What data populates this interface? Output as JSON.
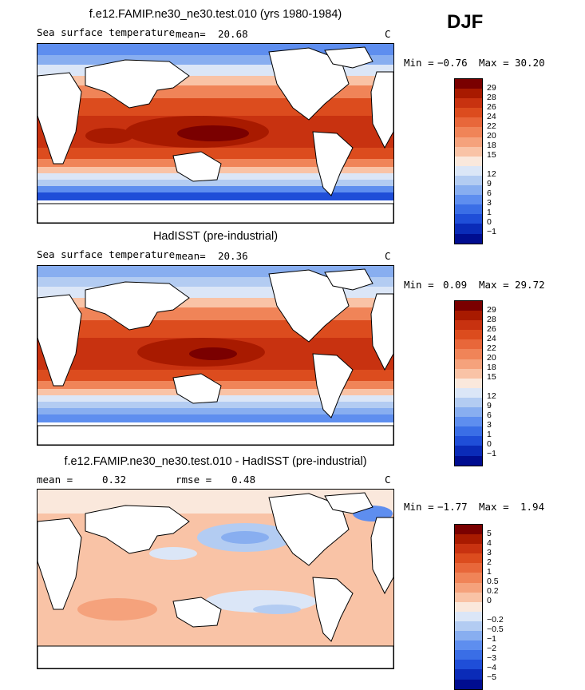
{
  "season": "DJF",
  "panels": [
    {
      "id": "model",
      "title": "f.e12.FAMIP.ne30_ne30.test.010 (yrs 1980-1984)",
      "left_label": "Sea surface temperature",
      "mean_label": "mean=",
      "mean_value": "20.68",
      "unit": "C",
      "min_label": "Min =",
      "min_value": "−0.76",
      "max_label": "Max =",
      "max_value": "30.20",
      "colorbar_labels": [
        "29",
        "28",
        "26",
        "24",
        "22",
        "20",
        "18",
        "15",
        "12",
        "9",
        "6",
        "3",
        "1",
        "0",
        "−1"
      ]
    },
    {
      "id": "obs",
      "title": "HadISST (pre-industrial)",
      "left_label": "Sea surface temperature",
      "mean_label": "mean=",
      "mean_value": "20.36",
      "unit": "C",
      "min_label": "Min =",
      "min_value": "0.09",
      "max_label": "Max =",
      "max_value": "29.72",
      "colorbar_labels": [
        "29",
        "28",
        "26",
        "24",
        "22",
        "20",
        "18",
        "15",
        "12",
        "9",
        "6",
        "3",
        "1",
        "0",
        "−1"
      ]
    },
    {
      "id": "diff",
      "title": "f.e12.FAMIP.ne30_ne30.test.010 - HadISST (pre-industrial)",
      "mean_label": "mean =",
      "mean_value": "0.32",
      "rmse_label": "rmse =",
      "rmse_value": "0.48",
      "unit": "C",
      "min_label": "Min =",
      "min_value": "−1.77",
      "max_label": "Max =",
      "max_value": "1.94",
      "colorbar_labels": [
        "5",
        "4",
        "3",
        "2",
        "1",
        "0.5",
        "0.2",
        "0",
        "−0.2",
        "−0.5",
        "−1",
        "−2",
        "−3",
        "−4",
        "−5"
      ]
    }
  ],
  "colors": {
    "abs_scale": [
      "#7a0000",
      "#a81a00",
      "#c83210",
      "#dc4c1e",
      "#e8673a",
      "#f08458",
      "#f5a27c",
      "#f9c3a6",
      "#fae8dc",
      "#dbe6f7",
      "#b3ccf2",
      "#88aef0",
      "#5e8eef",
      "#3a6ee6",
      "#1f4ed8",
      "#0a2bb8",
      "#000d90"
    ],
    "diff_scale": [
      "#7a0000",
      "#a81a00",
      "#c83210",
      "#dc4c1e",
      "#e8673a",
      "#f08458",
      "#f5a27c",
      "#f9c3a6",
      "#fae8dc",
      "#dbe6f7",
      "#b3ccf2",
      "#88aef0",
      "#5e8eef",
      "#3a6ee6",
      "#1f4ed8",
      "#0a2bb8",
      "#000d90"
    ]
  }
}
